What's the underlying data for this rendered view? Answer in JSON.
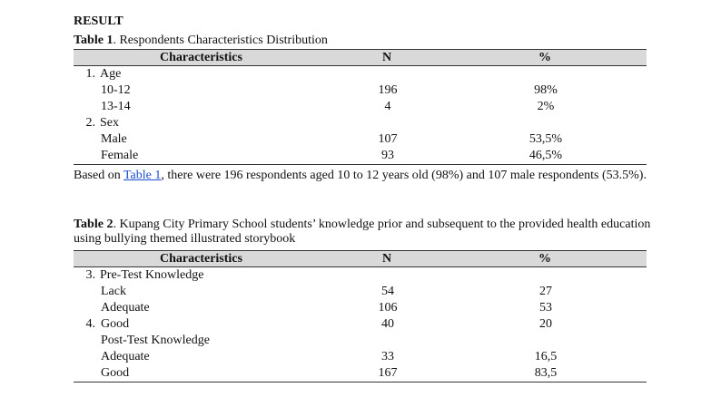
{
  "heading": "RESULT",
  "table1": {
    "caption_label": "Table 1",
    "caption_text": ". Respondents Characteristics Distribution",
    "columns": [
      "Characteristics",
      "N",
      "%"
    ],
    "rows": [
      {
        "num": "1.",
        "label": "Age",
        "n": "",
        "pct": ""
      },
      {
        "num": "",
        "label": "10-12",
        "n": "196",
        "pct": "98%"
      },
      {
        "num": "",
        "label": "13-14",
        "n": "4",
        "pct": "2%"
      },
      {
        "num": "2.",
        "label": "Sex",
        "n": "",
        "pct": ""
      },
      {
        "num": "",
        "label": "Male",
        "n": "107",
        "pct": "53,5%"
      },
      {
        "num": "",
        "label": "Female",
        "n": "93",
        "pct": "46,5%"
      }
    ]
  },
  "paragraph": {
    "before_link": "Based on ",
    "link": "Table 1",
    "after_link": ", there were 196 respondents aged 10 to 12 years old (98%) and 107 male respondents (53.5%)."
  },
  "table2": {
    "caption_label": "Table 2",
    "caption_text": ". Kupang City Primary School students’ knowledge prior and subsequent to the provided health education using bullying themed illustrated storybook",
    "columns": [
      "Characteristics",
      "N",
      "%"
    ],
    "rows": [
      {
        "num": "3.",
        "label": "Pre-Test Knowledge",
        "n": "",
        "pct": ""
      },
      {
        "num": "",
        "label": "Lack",
        "n": "54",
        "pct": "27"
      },
      {
        "num": "",
        "label": "Adequate",
        "n": "106",
        "pct": "53"
      },
      {
        "num": "4.",
        "label": "Good",
        "n": "40",
        "pct": "20"
      },
      {
        "num": "",
        "label": "Post-Test Knowledge",
        "n": "",
        "pct": ""
      },
      {
        "num": "",
        "label": "Adequate",
        "n": "33",
        "pct": "16,5"
      },
      {
        "num": "",
        "label": "Good",
        "n": "167",
        "pct": "83,5"
      }
    ]
  }
}
